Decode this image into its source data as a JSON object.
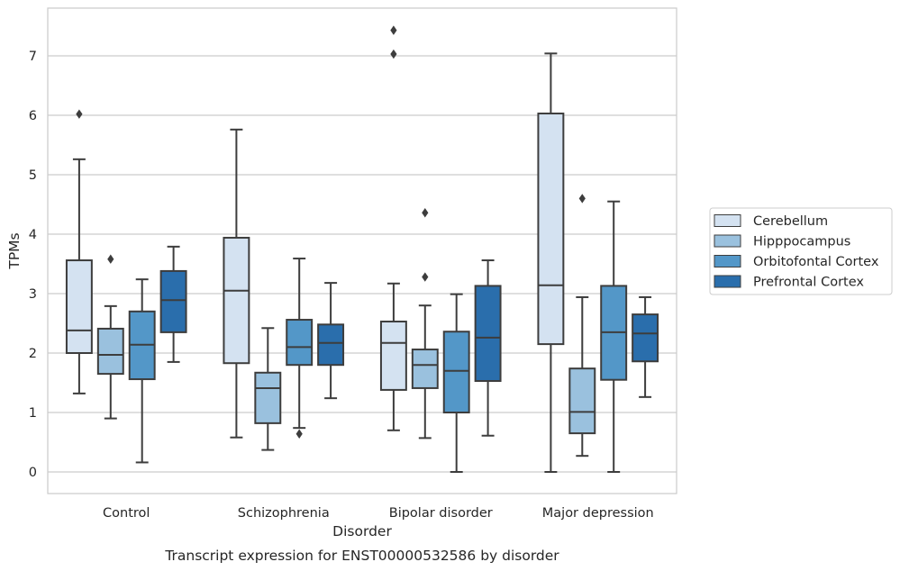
{
  "chart_data": {
    "type": "boxplot",
    "title": "Transcript expression for ENST00000532586 by disorder",
    "xlabel": "Disorder",
    "ylabel": "TPMs",
    "ylim": [
      -0.35,
      7.8
    ],
    "yticks": [
      0,
      1,
      2,
      3,
      4,
      5,
      6,
      7
    ],
    "grid": true,
    "legend_position": "right",
    "categories": [
      "Control",
      "Schizophrenia",
      "Bipolar disorder",
      "Major depression"
    ],
    "series": [
      {
        "name": "Cerebellum",
        "color": "#d4e2f1",
        "boxes": [
          {
            "whisker_low": 1.32,
            "q1": 2.0,
            "median": 2.38,
            "q3": 3.56,
            "whisker_high": 5.26,
            "outliers": [
              6.02
            ]
          },
          {
            "whisker_low": 0.58,
            "q1": 1.83,
            "median": 3.05,
            "q3": 3.94,
            "whisker_high": 5.76,
            "outliers": []
          },
          {
            "whisker_low": 0.7,
            "q1": 1.38,
            "median": 2.17,
            "q3": 2.53,
            "whisker_high": 3.17,
            "outliers": [
              7.03,
              7.43
            ]
          },
          {
            "whisker_low": 0.0,
            "q1": 2.15,
            "median": 3.14,
            "q3": 6.03,
            "whisker_high": 7.04,
            "outliers": []
          }
        ]
      },
      {
        "name": "Hipppocampus",
        "color": "#9ac1de",
        "boxes": [
          {
            "whisker_low": 0.9,
            "q1": 1.65,
            "median": 1.97,
            "q3": 2.41,
            "whisker_high": 2.79,
            "outliers": [
              3.58
            ]
          },
          {
            "whisker_low": 0.37,
            "q1": 0.82,
            "median": 1.41,
            "q3": 1.67,
            "whisker_high": 2.42,
            "outliers": []
          },
          {
            "whisker_low": 0.57,
            "q1": 1.41,
            "median": 1.8,
            "q3": 2.06,
            "whisker_high": 2.8,
            "outliers": [
              3.28,
              4.36
            ]
          },
          {
            "whisker_low": 0.27,
            "q1": 0.65,
            "median": 1.01,
            "q3": 1.74,
            "whisker_high": 2.94,
            "outliers": [
              4.6
            ]
          }
        ]
      },
      {
        "name": "Orbitofontal Cortex",
        "color": "#5397c8",
        "boxes": [
          {
            "whisker_low": 0.16,
            "q1": 1.56,
            "median": 2.14,
            "q3": 2.7,
            "whisker_high": 3.24,
            "outliers": []
          },
          {
            "whisker_low": 0.74,
            "q1": 1.8,
            "median": 2.1,
            "q3": 2.56,
            "whisker_high": 3.59,
            "outliers": [
              0.64
            ]
          },
          {
            "whisker_low": 0.0,
            "q1": 1.0,
            "median": 1.7,
            "q3": 2.36,
            "whisker_high": 2.99,
            "outliers": []
          },
          {
            "whisker_low": 0.0,
            "q1": 1.55,
            "median": 2.35,
            "q3": 3.13,
            "whisker_high": 4.55,
            "outliers": []
          }
        ]
      },
      {
        "name": "Prefrontal Cortex",
        "color": "#2a6eac",
        "boxes": [
          {
            "whisker_low": 1.85,
            "q1": 2.35,
            "median": 2.89,
            "q3": 3.38,
            "whisker_high": 3.79,
            "outliers": []
          },
          {
            "whisker_low": 1.24,
            "q1": 1.8,
            "median": 2.17,
            "q3": 2.48,
            "whisker_high": 3.18,
            "outliers": []
          },
          {
            "whisker_low": 0.61,
            "q1": 1.53,
            "median": 2.26,
            "q3": 3.13,
            "whisker_high": 3.56,
            "outliers": []
          },
          {
            "whisker_low": 1.26,
            "q1": 1.86,
            "median": 2.33,
            "q3": 2.65,
            "whisker_high": 2.94,
            "outliers": []
          }
        ]
      }
    ]
  }
}
